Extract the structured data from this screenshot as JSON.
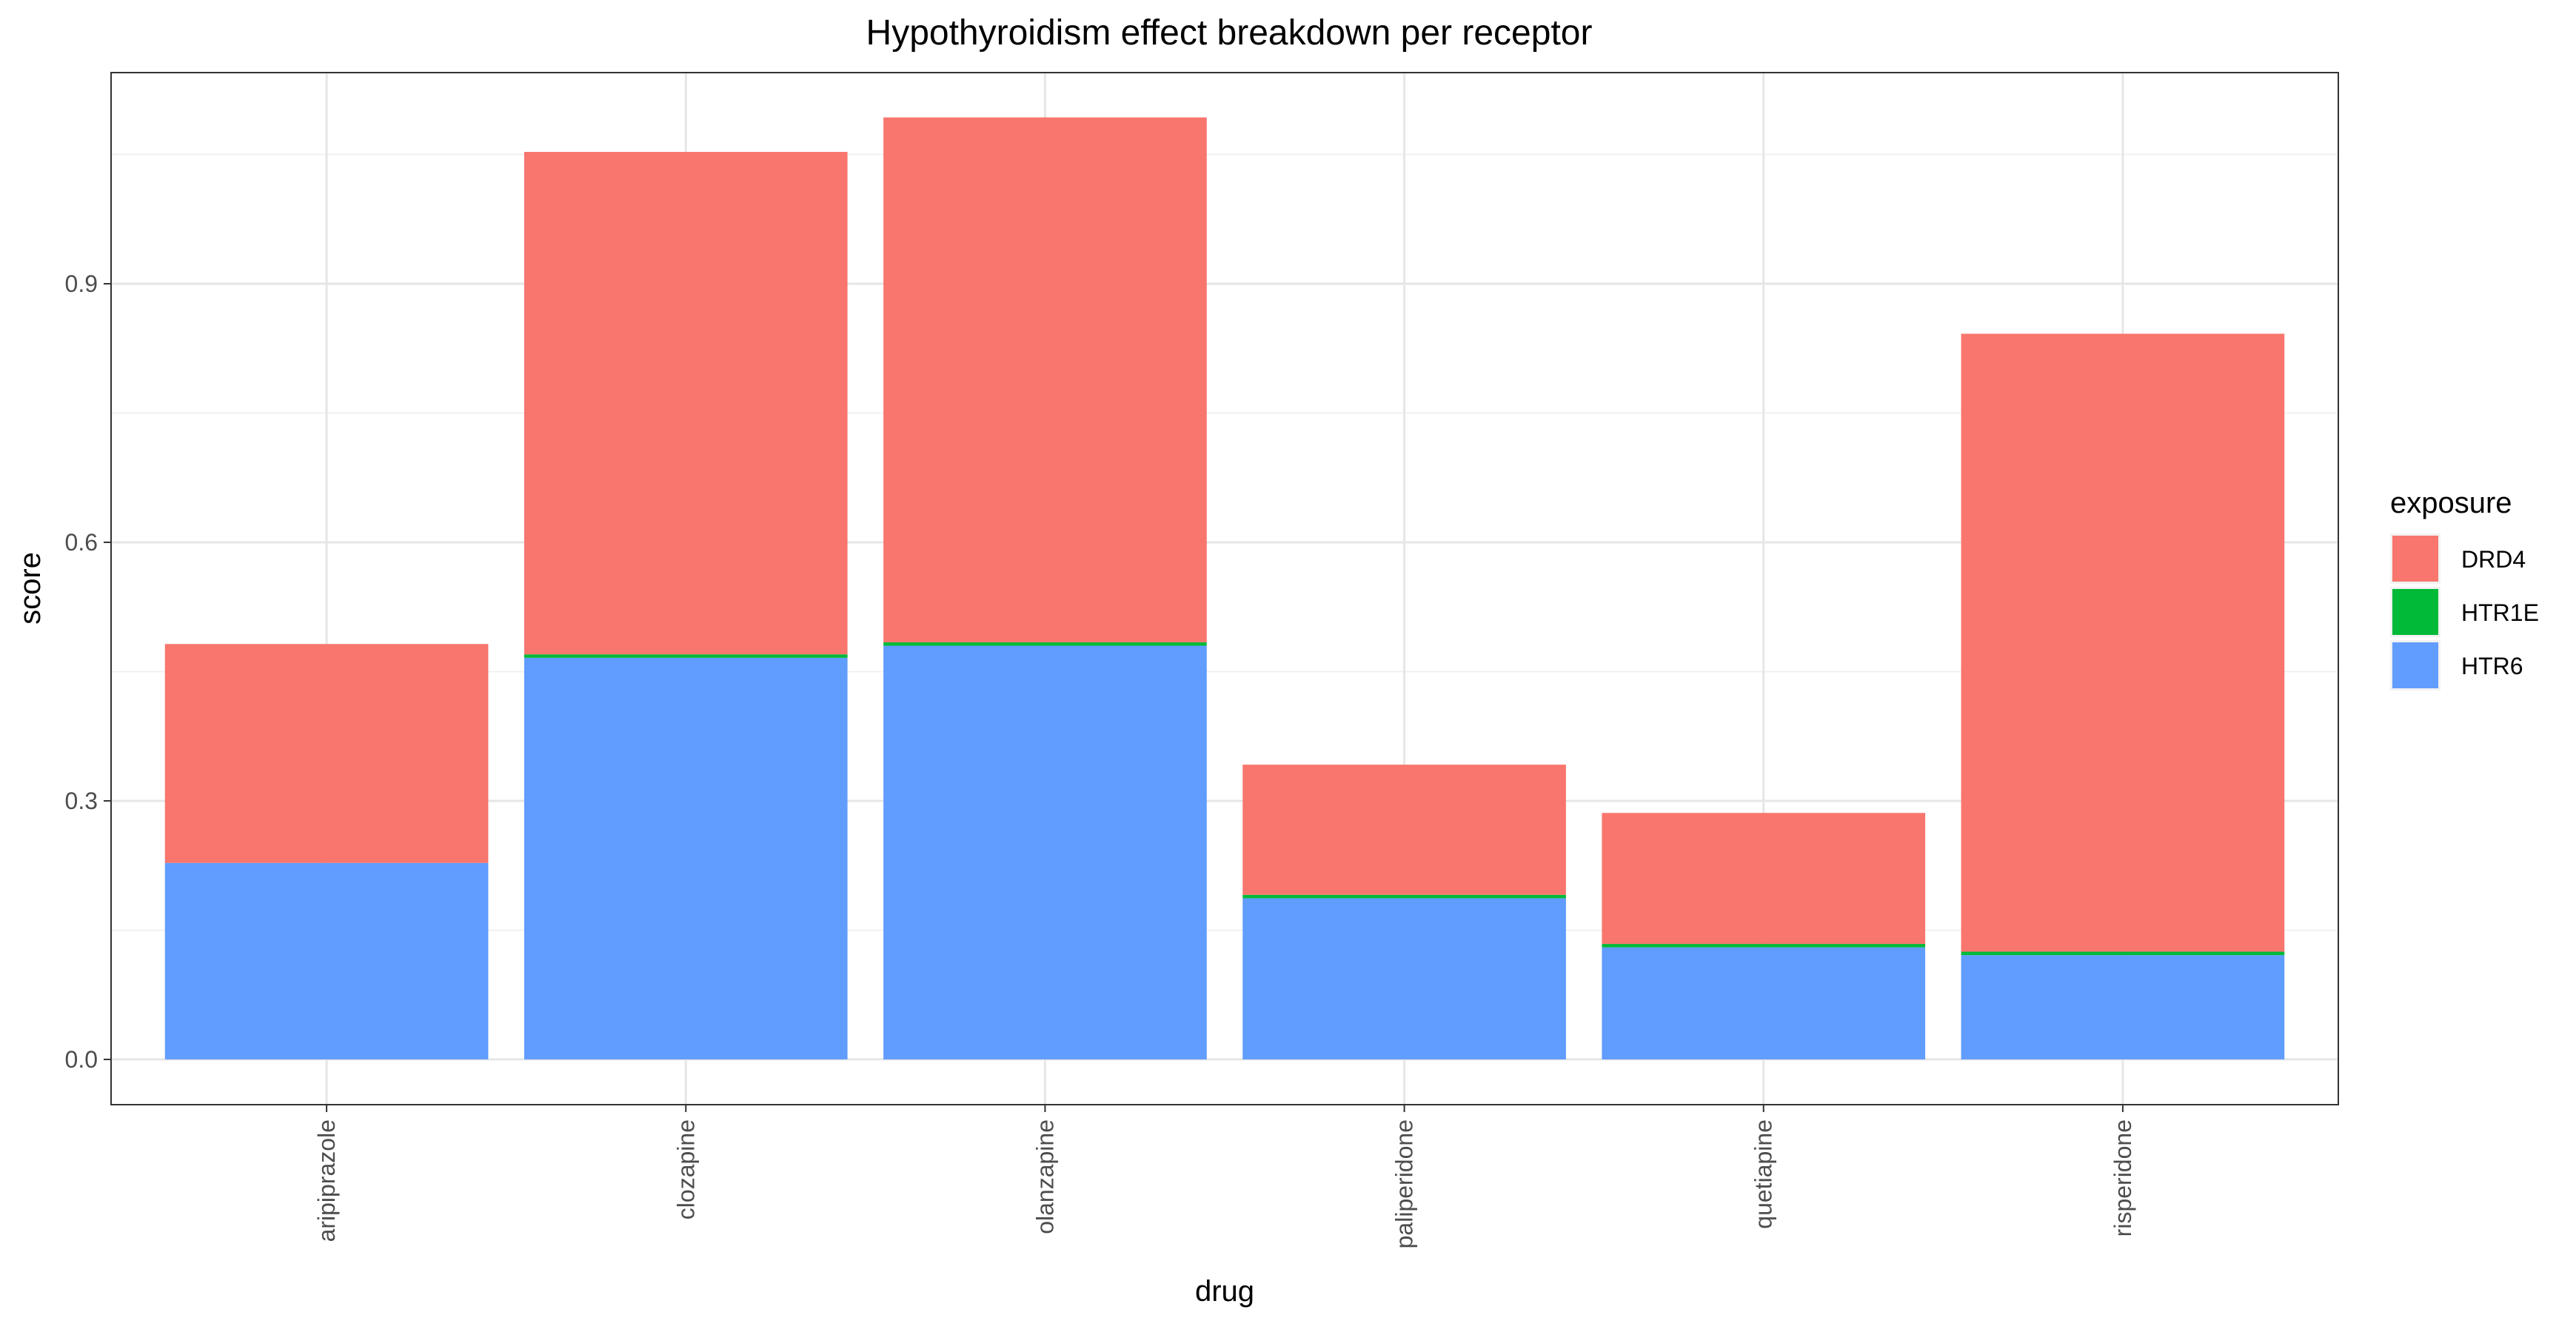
{
  "chart_data": {
    "type": "bar",
    "stacked": true,
    "title": "Hypothyroidism effect breakdown per receptor",
    "xlabel": "drug",
    "ylabel": "score",
    "categories": [
      "aripiprazole",
      "clozapine",
      "olanzapine",
      "paliperidone",
      "quetiapine",
      "risperidone"
    ],
    "series": [
      {
        "name": "HTR6",
        "color": "#619CFF",
        "values": [
          0.228,
          0.466,
          0.48,
          0.187,
          0.13,
          0.121
        ]
      },
      {
        "name": "HTR1E",
        "color": "#00BA38",
        "values": [
          0.0,
          0.004,
          0.004,
          0.004,
          0.004,
          0.004
        ]
      },
      {
        "name": "DRD4",
        "color": "#F8766D",
        "values": [
          0.254,
          0.583,
          0.609,
          0.151,
          0.152,
          0.717
        ]
      }
    ],
    "ylim": [
      -0.0525,
      1.145
    ],
    "yticks": [
      0.0,
      0.3,
      0.6,
      0.9
    ],
    "ytick_labels": [
      "0.0",
      "0.3",
      "0.6",
      "0.9"
    ],
    "legend": {
      "title": "exposure",
      "position": "right",
      "entries": [
        "DRD4",
        "HTR1E",
        "HTR6"
      ]
    },
    "grid": true
  }
}
